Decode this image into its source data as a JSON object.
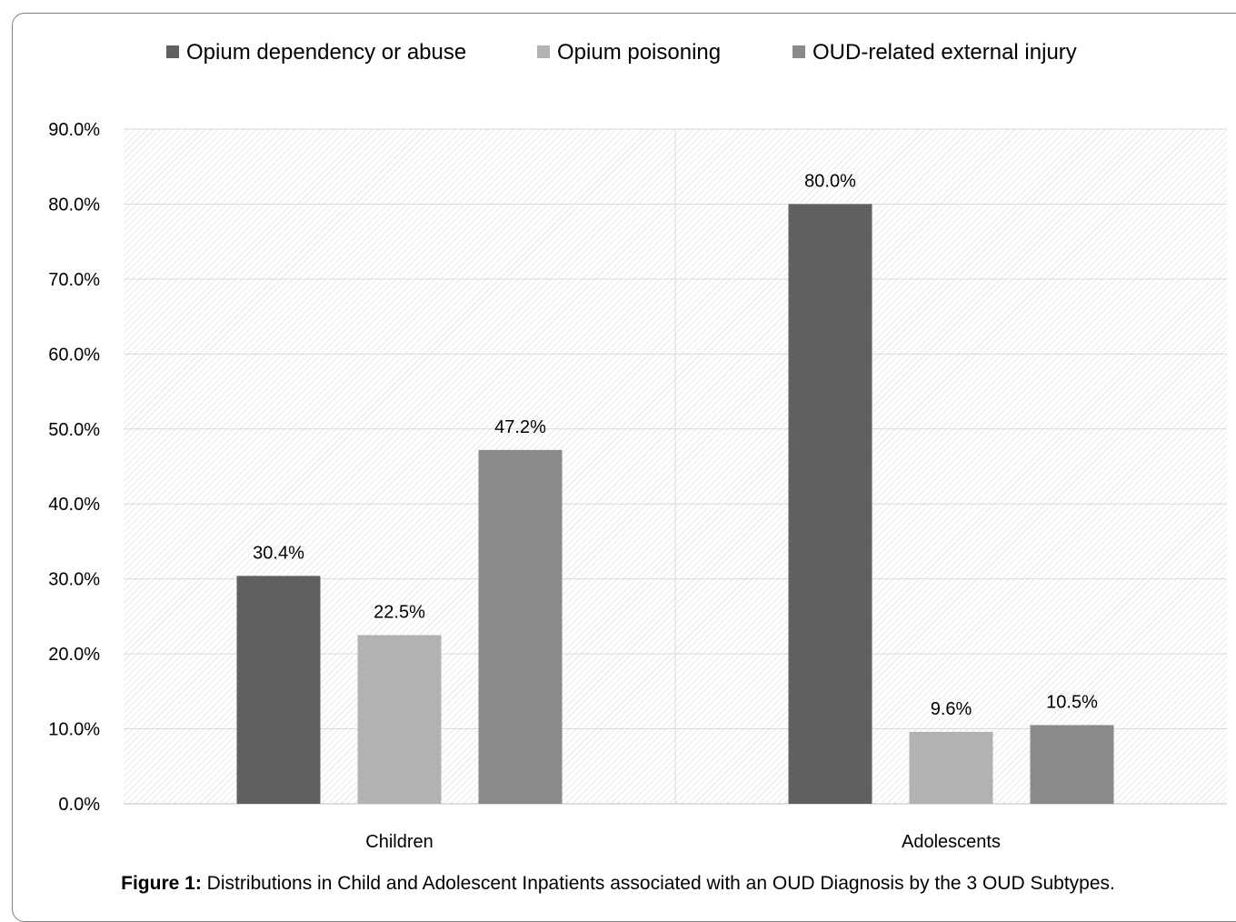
{
  "chart_data": {
    "type": "bar",
    "categories": [
      "Children",
      "Adolescents"
    ],
    "series": [
      {
        "name": "Opium dependency or abuse",
        "values": [
          30.4,
          80.0
        ],
        "color": "#606060"
      },
      {
        "name": "Opium poisoning",
        "values": [
          22.5,
          9.6
        ],
        "color": "#b2b2b2"
      },
      {
        "name": "OUD-related external injury",
        "values": [
          47.2,
          10.5
        ],
        "color": "#8a8a8a"
      }
    ],
    "data_labels": [
      [
        "30.4%",
        "80.0%"
      ],
      [
        "22.5%",
        "9.6%"
      ],
      [
        "47.2%",
        "10.5%"
      ]
    ],
    "ylim": [
      0,
      90
    ],
    "yticks": [
      "0.0%",
      "10.0%",
      "20.0%",
      "30.0%",
      "40.0%",
      "50.0%",
      "60.0%",
      "70.0%",
      "80.0%",
      "90.0%"
    ],
    "legend_position": "top",
    "grid": true,
    "background": "hatched"
  },
  "caption": {
    "label": "Figure 1:",
    "text": " Distributions in Child and Adolescent Inpatients associated with an OUD Diagnosis by the 3 OUD Subtypes."
  }
}
